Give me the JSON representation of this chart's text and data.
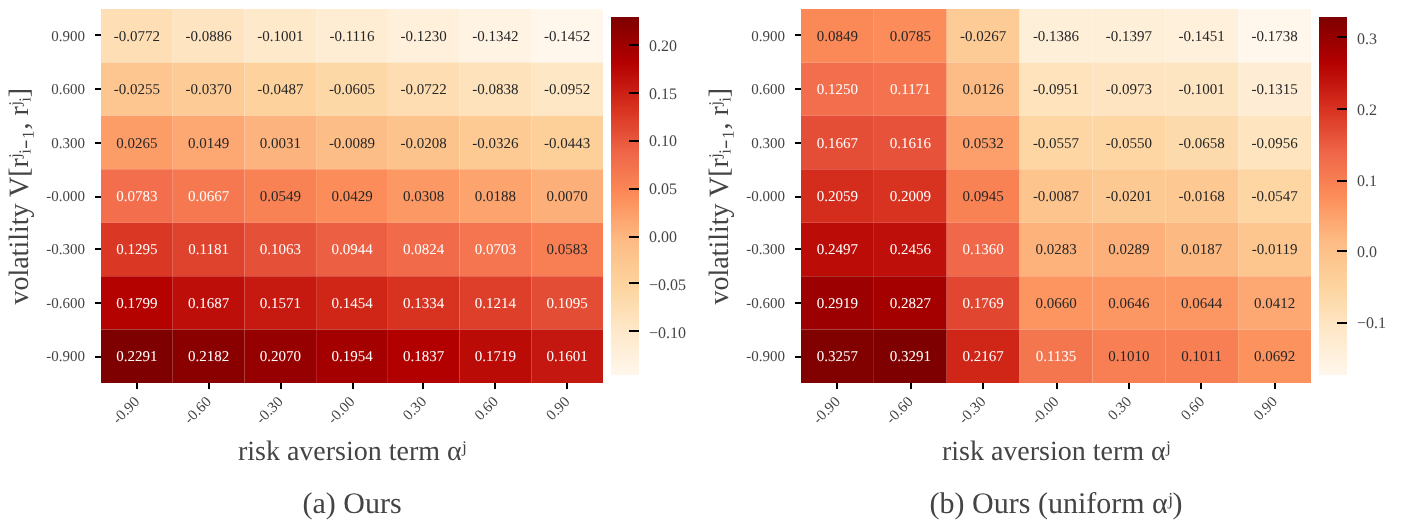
{
  "chart_data": [
    {
      "type": "heatmap",
      "title": "(a) Ours",
      "xlabel": "risk aversion term αʲ",
      "ylabel": "volatility V[rʲᵢ₋₁, rʲᵢ]",
      "categories": [
        "-0.90",
        "-0.60",
        "-0.30",
        "-0.00",
        "0.30",
        "0.60",
        "0.90"
      ],
      "y_categories": [
        "0.900",
        "0.600",
        "0.300",
        "-0.000",
        "-0.300",
        "-0.600",
        "-0.900"
      ],
      "cells": [
        [
          -0.0772,
          -0.0886,
          -0.1001,
          -0.1116,
          -0.123,
          -0.1342,
          -0.1452
        ],
        [
          -0.0255,
          -0.037,
          -0.0487,
          -0.0605,
          -0.0722,
          -0.0838,
          -0.0952
        ],
        [
          0.0265,
          0.0149,
          0.0031,
          -0.0089,
          -0.0208,
          -0.0326,
          -0.0443
        ],
        [
          0.0783,
          0.0667,
          0.0549,
          0.0429,
          0.0308,
          0.0188,
          0.007
        ],
        [
          0.1295,
          0.1181,
          0.1063,
          0.0944,
          0.0824,
          0.0703,
          0.0583
        ],
        [
          0.1799,
          0.1687,
          0.1571,
          0.1454,
          0.1334,
          0.1214,
          0.1095
        ],
        [
          0.2291,
          0.2182,
          0.207,
          0.1954,
          0.1837,
          0.1719,
          0.1601
        ]
      ],
      "cell_labels": [
        [
          "-0.0772",
          "-0.0886",
          "-0.1001",
          "-0.1116",
          "-0.1230",
          "-0.1342",
          "-0.1452"
        ],
        [
          "-0.0255",
          "-0.0370",
          "-0.0487",
          "-0.0605",
          "-0.0722",
          "-0.0838",
          "-0.0952"
        ],
        [
          "0.0265",
          "0.0149",
          "0.0031",
          "-0.0089",
          "-0.0208",
          "-0.0326",
          "-0.0443"
        ],
        [
          "0.0783",
          "0.0667",
          "0.0549",
          "0.0429",
          "0.0308",
          "0.0188",
          "0.0070"
        ],
        [
          "0.1295",
          "0.1181",
          "0.1063",
          "0.0944",
          "0.0824",
          "0.0703",
          "0.0583"
        ],
        [
          "0.1799",
          "0.1687",
          "0.1571",
          "0.1454",
          "0.1334",
          "0.1214",
          "0.1095"
        ],
        [
          "0.2291",
          "0.2182",
          "0.2070",
          "0.1954",
          "0.1837",
          "0.1719",
          "0.1601"
        ]
      ],
      "clim": [
        -0.1452,
        0.2291
      ],
      "cticks": [
        {
          "value": -0.1,
          "label": "−0.10"
        },
        {
          "value": -0.05,
          "label": "−0.05"
        },
        {
          "value": 0,
          "label": "0.00"
        },
        {
          "value": 0.05,
          "label": "0.05"
        },
        {
          "value": 0.1,
          "label": "0.10"
        },
        {
          "value": 0.15,
          "label": "0.15"
        },
        {
          "value": 0.2,
          "label": "0.20"
        }
      ]
    },
    {
      "type": "heatmap",
      "title": "(b) Ours (uniform αʲ)",
      "xlabel": "risk aversion term αʲ",
      "ylabel": "volatility V[rʲᵢ₋₁, rʲᵢ]",
      "categories": [
        "-0.90",
        "-0.60",
        "-0.30",
        "-0.00",
        "0.30",
        "0.60",
        "0.90"
      ],
      "y_categories": [
        "0.900",
        "0.600",
        "0.300",
        "-0.000",
        "-0.300",
        "-0.600",
        "-0.900"
      ],
      "cells": [
        [
          0.0849,
          0.0785,
          -0.0267,
          -0.1386,
          -0.1397,
          -0.1451,
          -0.1738
        ],
        [
          0.125,
          0.1171,
          0.0126,
          -0.0951,
          -0.0973,
          -0.1001,
          -0.1315
        ],
        [
          0.1667,
          0.1616,
          0.0532,
          -0.0557,
          -0.055,
          -0.0658,
          -0.0956
        ],
        [
          0.2059,
          0.2009,
          0.0945,
          -0.0087,
          -0.0201,
          -0.0168,
          -0.0547
        ],
        [
          0.2497,
          0.2456,
          0.136,
          0.0283,
          0.0289,
          0.0187,
          -0.0119
        ],
        [
          0.2919,
          0.2827,
          0.1769,
          0.066,
          0.0646,
          0.0644,
          0.0412
        ],
        [
          0.3257,
          0.3291,
          0.2167,
          0.1135,
          0.101,
          0.1011,
          0.0692
        ]
      ],
      "cell_labels": [
        [
          "0.0849",
          "0.0785",
          "-0.0267",
          "-0.1386",
          "-0.1397",
          "-0.1451",
          "-0.1738"
        ],
        [
          "0.1250",
          "0.1171",
          "0.0126",
          "-0.0951",
          "-0.0973",
          "-0.1001",
          "-0.1315"
        ],
        [
          "0.1667",
          "0.1616",
          "0.0532",
          "-0.0557",
          "-0.0550",
          "-0.0658",
          "-0.0956"
        ],
        [
          "0.2059",
          "0.2009",
          "0.0945",
          "-0.0087",
          "-0.0201",
          "-0.0168",
          "-0.0547"
        ],
        [
          "0.2497",
          "0.2456",
          "0.1360",
          "0.0283",
          "0.0289",
          "0.0187",
          "-0.0119"
        ],
        [
          "0.2919",
          "0.2827",
          "0.1769",
          "0.0660",
          "0.0646",
          "0.0644",
          "0.0412"
        ],
        [
          "0.3257",
          "0.3291",
          "0.2167",
          "0.1135",
          "0.1010",
          "0.1011",
          "0.0692"
        ]
      ],
      "clim": [
        -0.1738,
        0.3291
      ],
      "cticks": [
        {
          "value": -0.1,
          "label": "−0.1"
        },
        {
          "value": 0,
          "label": "0.0"
        },
        {
          "value": 0.1,
          "label": "0.1"
        },
        {
          "value": 0.2,
          "label": "0.2"
        },
        {
          "value": 0.3,
          "label": "0.3"
        }
      ]
    }
  ]
}
